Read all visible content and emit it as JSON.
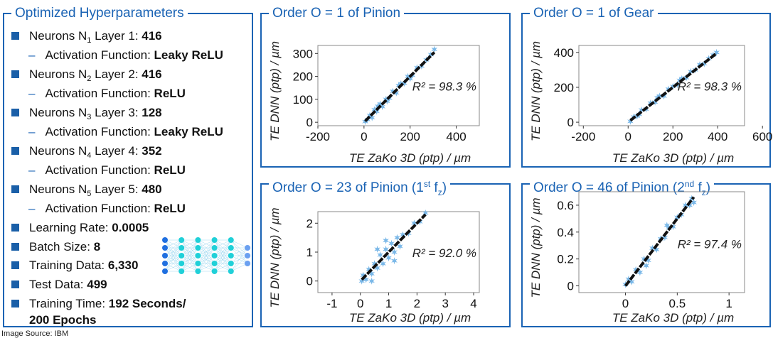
{
  "left_panel": {
    "title": "Optimized Hyperparameters",
    "items": [
      {
        "type": "main",
        "pre": "Neurons N",
        "sub": "1",
        "post": " Layer 1: ",
        "value": "416"
      },
      {
        "type": "sub",
        "pre": "Activation Function: ",
        "value": "Leaky ReLU"
      },
      {
        "type": "main",
        "pre": "Neurons N",
        "sub": "2",
        "post": " Layer 2: ",
        "value": "416"
      },
      {
        "type": "sub",
        "pre": "Activation Function: ",
        "value": "ReLU"
      },
      {
        "type": "main",
        "pre": "Neurons N",
        "sub": "3",
        "post": " Layer 3: ",
        "value": "128"
      },
      {
        "type": "sub",
        "pre": "Activation Function: ",
        "value": "Leaky ReLU"
      },
      {
        "type": "main",
        "pre": "Neurons N",
        "sub": "4",
        "post": " Layer 4: ",
        "value": "352"
      },
      {
        "type": "sub",
        "pre": "Activation Function: ",
        "value": "ReLU"
      },
      {
        "type": "main",
        "pre": "Neurons N",
        "sub": "5",
        "post": " Layer 5: ",
        "value": "480"
      },
      {
        "type": "sub",
        "pre": "Activation Function: ",
        "value": "ReLU"
      },
      {
        "type": "main",
        "pre": "Learning Rate: ",
        "value": "0.0005"
      },
      {
        "type": "main",
        "pre": "Batch Size: ",
        "value": "8"
      },
      {
        "type": "main",
        "pre": "Training Data: ",
        "value": "6,330"
      },
      {
        "type": "main",
        "pre": "Test Data: ",
        "value": "499"
      },
      {
        "type": "main",
        "pre": "Training Time: ",
        "value": "192 Seconds/"
      },
      {
        "type": "cont",
        "value": "200 Epochs"
      }
    ],
    "network_layers": [
      5,
      5,
      5,
      5,
      5,
      3
    ],
    "network_colors": {
      "input": "#1f6fe0",
      "hidden": "#20d0d8",
      "output": "#6aa0f0"
    }
  },
  "source": "Image Source: IBM",
  "colors": {
    "accent": "#1a63b4",
    "points": "#7ab8e8",
    "fit": "#111111"
  },
  "chart_data": [
    {
      "type": "scatter",
      "title": "Order O = 1 of Pinion",
      "title_sup": "",
      "title_sub": "",
      "title_tail": "",
      "xlabel": "TE ZaKo 3D (ptp) / µm",
      "ylabel": "TE DNN (ptp) / µm",
      "r2": "R² = 98.3 %",
      "xlim": [
        -200,
        500
      ],
      "ylim": [
        -15,
        335
      ],
      "xticks": [
        -200,
        0,
        200,
        400
      ],
      "yticks": [
        0,
        100,
        200,
        300
      ],
      "grid": false,
      "fit": [
        [
          5,
          5
        ],
        [
          305,
          305
        ]
      ],
      "points": [
        [
          5,
          3
        ],
        [
          15,
          12
        ],
        [
          25,
          30
        ],
        [
          35,
          20
        ],
        [
          45,
          55
        ],
        [
          55,
          48
        ],
        [
          70,
          80
        ],
        [
          80,
          68
        ],
        [
          95,
          100
        ],
        [
          110,
          105
        ],
        [
          125,
          135
        ],
        [
          140,
          128
        ],
        [
          160,
          168
        ],
        [
          175,
          170
        ],
        [
          190,
          200
        ],
        [
          210,
          205
        ],
        [
          230,
          238
        ],
        [
          250,
          245
        ],
        [
          270,
          272
        ],
        [
          290,
          295
        ],
        [
          305,
          318
        ],
        [
          60,
          70
        ],
        [
          100,
          92
        ],
        [
          150,
          160
        ],
        [
          200,
          190
        ]
      ]
    },
    {
      "type": "scatter",
      "title": "Order O = 1 of Gear",
      "title_sup": "",
      "title_sub": "",
      "title_tail": "",
      "xlabel": "TE ZaKo 3D (ptp) / µm",
      "ylabel": "TE DNN (ptp) / µm",
      "r2": "R² = 98.3 %",
      "xlim": [
        -220,
        520
      ],
      "ylim": [
        -20,
        440
      ],
      "xticks": [
        -200,
        0,
        200,
        400,
        600
      ],
      "yticks": [
        0,
        200,
        400
      ],
      "grid": false,
      "fit": [
        [
          10,
          10
        ],
        [
          395,
          395
        ]
      ],
      "points": [
        [
          10,
          5
        ],
        [
          25,
          30
        ],
        [
          40,
          35
        ],
        [
          60,
          70
        ],
        [
          80,
          75
        ],
        [
          100,
          110
        ],
        [
          120,
          115
        ],
        [
          140,
          150
        ],
        [
          160,
          150
        ],
        [
          180,
          190
        ],
        [
          200,
          205
        ],
        [
          220,
          215
        ],
        [
          240,
          250
        ],
        [
          260,
          255
        ],
        [
          280,
          290
        ],
        [
          300,
          300
        ],
        [
          320,
          330
        ],
        [
          340,
          335
        ],
        [
          360,
          365
        ],
        [
          380,
          385
        ],
        [
          395,
          400
        ],
        [
          130,
          140
        ],
        [
          230,
          240
        ],
        [
          50,
          45
        ]
      ]
    },
    {
      "type": "scatter",
      "title": "Order O = 23 of Pinion (1",
      "title_sup": "st",
      "title_mid": " f",
      "title_sub": "z",
      "title_tail": ")",
      "xlabel": "TE ZaKo 3D (ptp) / µm",
      "ylabel": "TE DNN (ptp) / µm",
      "r2": "R² = 92.0 %",
      "xlim": [
        -1.5,
        4.2
      ],
      "ylim": [
        -0.4,
        2.4
      ],
      "xticks": [
        -1,
        0,
        1,
        2,
        3,
        4
      ],
      "yticks": [
        0,
        1,
        2
      ],
      "grid": false,
      "fit": [
        [
          0.05,
          0.05
        ],
        [
          2.3,
          2.3
        ]
      ],
      "points": [
        [
          0.05,
          0.0
        ],
        [
          0.1,
          0.2
        ],
        [
          0.2,
          0.05
        ],
        [
          0.3,
          0.4
        ],
        [
          0.4,
          0.25
        ],
        [
          0.5,
          0.6
        ],
        [
          0.6,
          0.45
        ],
        [
          0.7,
          0.9
        ],
        [
          0.8,
          0.6
        ],
        [
          0.9,
          1.1
        ],
        [
          1.0,
          0.8
        ],
        [
          1.1,
          1.3
        ],
        [
          1.2,
          1.0
        ],
        [
          1.3,
          1.5
        ],
        [
          1.4,
          1.2
        ],
        [
          1.5,
          1.6
        ],
        [
          1.7,
          1.65
        ],
        [
          1.9,
          2.0
        ],
        [
          2.1,
          2.05
        ],
        [
          2.3,
          2.35
        ],
        [
          0.6,
          1.1
        ],
        [
          0.9,
          1.4
        ],
        [
          1.2,
          0.7
        ],
        [
          0.4,
          0.0
        ]
      ]
    },
    {
      "type": "scatter",
      "title": "Order O = 46 of Pinion (2",
      "title_sup": "nd",
      "title_mid": " f",
      "title_sub": "z",
      "title_tail": ")",
      "xlabel": "TE ZaKo 3D (ptp) / µm",
      "ylabel": "TE DNN (ptp) / µm",
      "r2": "R² = 97.4 %",
      "xlim": [
        -0.45,
        1.15
      ],
      "ylim": [
        -0.05,
        0.7
      ],
      "xticks": [
        0,
        0.5,
        1
      ],
      "yticks": [
        0,
        0.2,
        0.4,
        0.6
      ],
      "grid": false,
      "fit": [
        [
          0.0,
          0.0
        ],
        [
          0.66,
          0.66
        ]
      ],
      "points": [
        [
          0.0,
          0.01
        ],
        [
          0.03,
          0.05
        ],
        [
          0.06,
          0.03
        ],
        [
          0.1,
          0.12
        ],
        [
          0.14,
          0.1
        ],
        [
          0.18,
          0.2
        ],
        [
          0.22,
          0.19
        ],
        [
          0.26,
          0.28
        ],
        [
          0.3,
          0.27
        ],
        [
          0.34,
          0.35
        ],
        [
          0.38,
          0.36
        ],
        [
          0.42,
          0.43
        ],
        [
          0.46,
          0.44
        ],
        [
          0.5,
          0.51
        ],
        [
          0.54,
          0.53
        ],
        [
          0.58,
          0.6
        ],
        [
          0.62,
          0.6
        ],
        [
          0.66,
          0.62
        ],
        [
          0.64,
          0.65
        ],
        [
          0.2,
          0.15
        ],
        [
          0.4,
          0.45
        ]
      ]
    }
  ]
}
